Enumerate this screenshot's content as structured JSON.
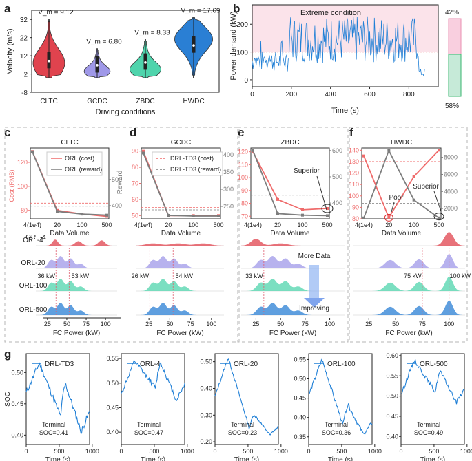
{
  "colors": {
    "red": "#e0434e",
    "purple": "#9f98e8",
    "teal": "#4fd4ac",
    "blue": "#2a7fd4",
    "cost": "#ef6b6b",
    "reward": "#7d7d7d",
    "line": "#1f7fd6",
    "pinkzone": "#fbe3ea",
    "pinkbar": "#f9cfdf",
    "greenbar": "#c6ead8"
  },
  "chart_data": [
    {
      "panel": "a",
      "type": "violin",
      "ylabel": "Velocity (m/s)",
      "xlabel": "Driving conditions",
      "yticks": [
        -8,
        2,
        12,
        22,
        32
      ],
      "ylim": [
        -8,
        37
      ],
      "categories": [
        "CLTC",
        "GCDC",
        "ZBDC",
        "HWDC"
      ],
      "vm_labels": [
        "V_m = 9.12",
        "V_m = 6.80",
        "V_m = 8.33",
        "V_m = 17.69"
      ],
      "vm_values": [
        9.12,
        6.8,
        8.33,
        17.69
      ],
      "ranges": [
        [
          0,
          32
        ],
        [
          0,
          16
        ],
        [
          0,
          21
        ],
        [
          0,
          33
        ]
      ]
    },
    {
      "panel": "b",
      "type": "line",
      "ylabel": "Power demand (kW)",
      "xlabel": "Time (s)",
      "xticks": [
        0,
        200,
        400,
        600,
        800
      ],
      "yticks": [
        0,
        100,
        200
      ],
      "xlim": [
        0,
        950
      ],
      "ylim": [
        -25,
        270
      ],
      "threshold": 100,
      "annotation": "Extreme  condition",
      "share_labels": [
        "42%",
        "58%"
      ],
      "share_values": [
        42,
        58
      ]
    },
    {
      "panel": "c",
      "title": "CLTC",
      "type": "line",
      "xlabel": "Data Volume",
      "x": [
        "4(1e4)",
        "20",
        "100",
        "500"
      ],
      "left_axis_label": "Cost (RMB)",
      "right_axis_label": "Reward",
      "left_ticks": [
        80,
        100,
        120
      ],
      "left_lim": [
        73,
        132
      ],
      "right_ticks": [
        400,
        500
      ],
      "right_lim": [
        350,
        620
      ],
      "series": [
        {
          "name": "ORL (cost)",
          "axis": "left",
          "values": [
            129,
            80,
            77,
            75
          ]
        },
        {
          "name": "ORL (reward)",
          "axis": "right",
          "values": [
            605,
            378,
            368,
            364
          ]
        }
      ],
      "hlines_left": [
        86
      ],
      "hlines_right": [
        398
      ]
    },
    {
      "panel": "d",
      "title": "GCDC",
      "type": "line",
      "xlabel": "Data Volume",
      "x": [
        "4(1e4)",
        "20",
        "100",
        "500"
      ],
      "left_ticks": [
        50,
        60,
        70,
        80,
        90
      ],
      "left_lim": [
        48,
        92
      ],
      "right_ticks": [
        250,
        300,
        350,
        400
      ],
      "right_lim": [
        214,
        420
      ],
      "series": [
        {
          "name": "DRL-TD3 (cost)",
          "axis": "left",
          "values": [
            90,
            50,
            50,
            50
          ]
        },
        {
          "name": "DRL-TD3 (reward)",
          "axis": "right",
          "values": [
            405,
            224,
            222,
            222
          ]
        }
      ],
      "hlines_left": [
        55
      ],
      "hlines_right": [
        240
      ]
    },
    {
      "panel": "e",
      "title": "ZBDC",
      "type": "line",
      "xlabel": "Data Volume",
      "x": [
        "4(1e4)",
        "20",
        "100",
        "500"
      ],
      "left_ticks": [
        70,
        80,
        90,
        100,
        110,
        120
      ],
      "left_lim": [
        68,
        123
      ],
      "right_ticks": [
        400,
        500,
        600
      ],
      "right_lim": [
        340,
        610
      ],
      "series": [
        {
          "name": "cost",
          "axis": "left",
          "values": [
            120,
            83,
            75,
            76
          ]
        },
        {
          "name": "reward",
          "axis": "right",
          "values": [
            600,
            360,
            354,
            352
          ]
        }
      ],
      "hlines_left": [
        95
      ],
      "hlines_right": [
        430
      ],
      "annotation": "Superior"
    },
    {
      "panel": "f",
      "title": "HWDC",
      "type": "line",
      "xlabel": "Data Volume",
      "x": [
        "4(1e4)",
        "20",
        "100",
        "500"
      ],
      "left_ticks": [
        80,
        90,
        100,
        110,
        120,
        130,
        140
      ],
      "left_lim": [
        80,
        142
      ],
      "right_ticks": [
        2000,
        4000,
        6000,
        8000
      ],
      "right_lim": [
        800,
        9100
      ],
      "series": [
        {
          "name": "cost",
          "axis": "left",
          "values": [
            135,
            81,
            117,
            140
          ]
        },
        {
          "name": "reward",
          "axis": "right",
          "values": [
            900,
            8800,
            3000,
            900
          ]
        }
      ],
      "hlines_left": [
        130
      ],
      "hlines_right": [
        2600
      ],
      "annotations": [
        "Poor",
        "Superior"
      ]
    },
    {
      "panel": "ridge",
      "type": "ridgeline",
      "xlabel": "FC Power (kW)",
      "rows": [
        "ORL-4",
        "ORL-20",
        "ORL-100",
        "ORL-500"
      ],
      "xticks": [
        25,
        50,
        75,
        100
      ],
      "xlim": [
        10,
        115
      ],
      "markers": {
        "c": [
          {
            "value": 36,
            "label": "36 kW"
          },
          {
            "value": 53,
            "label": "53 kW"
          }
        ],
        "d": [
          {
            "value": 26,
            "label": "26 kW"
          },
          {
            "value": 54,
            "label": "54 kW"
          }
        ],
        "e": [
          {
            "value": 33,
            "label": "33 kW"
          }
        ],
        "f": [
          {
            "value": 75,
            "label": "75 kW"
          },
          {
            "value": 100,
            "label": "100 kW"
          }
        ]
      },
      "arrow_labels": [
        "More Data",
        "Improving"
      ]
    },
    {
      "panel": "g",
      "type": "line",
      "ylabel": "SOC",
      "xlabel": "Time (s)",
      "xticks": [
        0,
        500,
        1000
      ],
      "xlim": [
        0,
        960
      ],
      "subplots": [
        {
          "name": "DRL-TD3",
          "terminal": 0.41,
          "yticks": [
            0.4,
            0.45,
            0.5
          ],
          "ylim": [
            0.385,
            0.53
          ]
        },
        {
          "name": "ORL-4",
          "terminal": 0.47,
          "yticks": [
            0.4,
            0.45,
            0.5,
            0.55
          ],
          "ylim": [
            0.375,
            0.56
          ]
        },
        {
          "name": "ORL-20",
          "terminal": 0.23,
          "yticks": [
            0.2,
            0.3,
            0.4,
            0.5
          ],
          "ylim": [
            0.19,
            0.53
          ]
        },
        {
          "name": "ORL-100",
          "terminal": 0.36,
          "yticks": [
            0.35,
            0.4,
            0.45,
            0.5,
            0.55
          ],
          "ylim": [
            0.33,
            0.565
          ]
        },
        {
          "name": "ORL-500",
          "terminal": 0.49,
          "yticks": [
            0.4,
            0.45,
            0.5,
            0.55,
            0.6
          ],
          "ylim": [
            0.38,
            0.605
          ]
        }
      ],
      "terminal_word": "Terminal"
    }
  ],
  "panel_letters": [
    "a",
    "b",
    "c",
    "d",
    "e",
    "f",
    "g"
  ]
}
